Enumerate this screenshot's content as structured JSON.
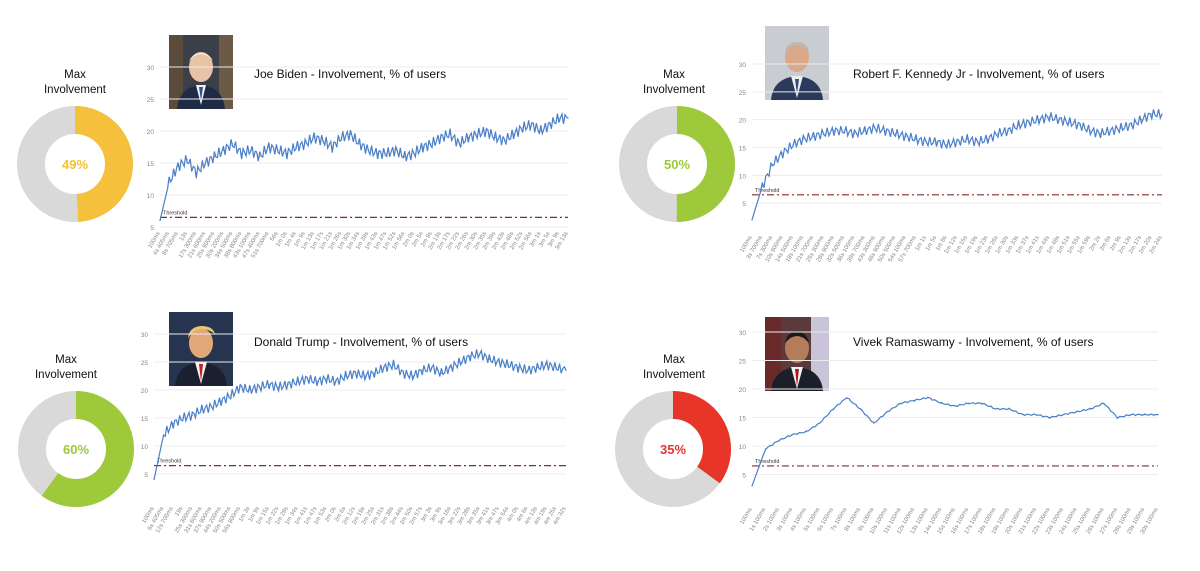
{
  "panels": [
    {
      "max_label_line1": "Max",
      "max_label_line2": "Involvement",
      "max_involvement": {
        "value": 49,
        "text": "49%",
        "color": "#f5c03b"
      },
      "portrait": "joe-biden-portrait",
      "chart_title": "Joe Biden - Involvement, % of users",
      "threshold_label": "Threshold"
    },
    {
      "max_label_line1": "Max",
      "max_label_line2": "Involvement",
      "max_involvement": {
        "value": 50,
        "text": "50%",
        "color": "#9dc93b"
      },
      "portrait": "robert-f-kennedy-jr-portrait",
      "chart_title": "Robert F. Kennedy Jr  - Involvement, % of users",
      "threshold_label": "Threshold"
    },
    {
      "max_label_line1": "Max",
      "max_label_line2": "Involvement",
      "max_involvement": {
        "value": 60,
        "text": "60%",
        "color": "#9dc93b"
      },
      "portrait": "donald-trump-portrait",
      "chart_title": "Donald Trump - Involvement, % of users",
      "threshold_label": "Threshold"
    },
    {
      "max_label_line1": "Max",
      "max_label_line2": "Involvement",
      "max_involvement": {
        "value": 35,
        "text": "35%",
        "color": "#e8352a"
      },
      "portrait": "vivek-ramaswamy-portrait",
      "chart_title": "Vivek Ramaswamy - Involvement, % of users",
      "threshold_label": "Threshold"
    }
  ],
  "colors": {
    "line": "#4a7fc8",
    "threshold": "#8b2a2a",
    "donut_track": "#d9d9d9",
    "grid": "#ececec",
    "axis_text": "#888888"
  },
  "chart_data": [
    {
      "type": "line",
      "title": "Joe Biden - Involvement, % of users",
      "ylim": [
        5,
        30
      ],
      "yticks": [
        5,
        10,
        15,
        20,
        25,
        30
      ],
      "threshold": 6.5,
      "x": [
        "100ms",
        "4s 405ms",
        "8s 705ms",
        "13s",
        "17s 300ms",
        "21s 600ms",
        "25s 900ms",
        "30s 200ms",
        "34s 500ms",
        "38s 800ms",
        "43s 100ms",
        "47s 400ms",
        "51s 700ms",
        "56s",
        "1m 0s",
        "1m 4s",
        "1m 9s",
        "1m 13s",
        "1m 17s",
        "1m 21s",
        "1m 26s",
        "1m 30s",
        "1m 34s",
        "1m 39s",
        "1m 43s",
        "1m 47s",
        "1m 52s",
        "1m 56s",
        "2m 0s",
        "2m 5s",
        "2m 9s",
        "2m 13s",
        "2m 17s",
        "2m 22s",
        "2m 26s",
        "2m 30s",
        "2m 35s",
        "2m 39s",
        "2m 43s",
        "2m 48s",
        "2m 52s",
        "2m 56s",
        "3m 1s",
        "3m 5s",
        "3m 9s",
        "3m 13s"
      ],
      "series": [
        {
          "values": [
            6,
            12,
            14.5,
            15.5,
            13.5,
            15,
            16,
            17,
            18,
            16.5,
            17,
            16,
            17.5,
            17,
            16.5,
            17.5,
            18,
            19,
            18.5,
            17.5,
            19,
            19.5,
            18,
            17,
            16.5,
            16.5,
            17,
            16,
            16.5,
            17.5,
            18,
            19,
            19.5,
            18,
            19,
            19.5,
            20,
            19,
            18.5,
            19.5,
            20.5,
            21,
            20,
            21,
            22,
            22
          ]
        }
      ]
    },
    {
      "type": "line",
      "title": "Robert F. Kennedy Jr  - Involvement, % of users",
      "ylim": [
        0,
        30
      ],
      "yticks": [
        5,
        10,
        15,
        20,
        25,
        30
      ],
      "threshold": 6.5,
      "x": [
        "100ms",
        "3s 700ms",
        "7s 300ms",
        "10s 900ms",
        "14s 500ms",
        "18s 100ms",
        "21s 700ms",
        "25s 300ms",
        "28s 900ms",
        "32s 500ms",
        "36s 100ms",
        "39s 700ms",
        "43s 300ms",
        "46s 900ms",
        "50s 500ms",
        "54s 100ms",
        "57s 700ms",
        "1m 1s",
        "1m 5s",
        "1m 8s",
        "1m 12s",
        "1m 15s",
        "1m 19s",
        "1m 23s",
        "1m 26s",
        "1m 30s",
        "1m 33s",
        "1m 37s",
        "1m 41s",
        "1m 44s",
        "1m 48s",
        "1m 51s",
        "1m 55s",
        "1m 59s",
        "2m 2s",
        "2m 6s",
        "2m 9s",
        "2m 13s",
        "2m 17s",
        "2m 20s",
        "2m 24s"
      ],
      "series": [
        {
          "values": [
            2,
            8,
            12,
            14,
            15.5,
            16.5,
            17,
            17.5,
            18,
            18,
            17.5,
            18,
            18.5,
            18,
            17.5,
            17,
            16.5,
            16,
            16,
            15.5,
            16,
            16.5,
            16,
            16.5,
            17.5,
            18,
            19,
            19.5,
            20,
            20.5,
            20,
            19.5,
            19,
            18,
            17.5,
            18,
            18.5,
            19,
            20,
            21,
            21
          ]
        }
      ]
    },
    {
      "type": "line",
      "title": "Donald Trump - Involvement, % of users",
      "ylim": [
        0,
        30
      ],
      "yticks": [
        5,
        10,
        15,
        20,
        25,
        30
      ],
      "threshold": 6.5,
      "x": [
        "100ms",
        "6s 405ms",
        "12s 700ms",
        "19s",
        "25s 300ms",
        "31s 600ms",
        "37s 900ms",
        "44s 200ms",
        "50s 500ms",
        "56s 800ms",
        "1m 3s",
        "1m 9s",
        "1m 15s",
        "1m 22s",
        "1m 28s",
        "1m 34s",
        "1m 41s",
        "1m 47s",
        "1m 53s",
        "2m 0s",
        "2m 6s",
        "2m 12s",
        "2m 19s",
        "2m 25s",
        "2m 31s",
        "2m 38s",
        "2m 44s",
        "2m 50s",
        "2m 57s",
        "3m 3s",
        "3m 9s",
        "3m 16s",
        "3m 22s",
        "3m 28s",
        "3m 35s",
        "3m 41s",
        "3m 47s",
        "3m 54s",
        "4m 0s",
        "4m 6s",
        "4m 13s",
        "4m 19s",
        "4m 25s",
        "4m 32s"
      ],
      "series": [
        {
          "values": [
            4,
            12,
            14,
            15,
            15.5,
            16.5,
            17,
            18,
            19,
            20.5,
            20,
            20.5,
            21,
            20.5,
            21,
            21.5,
            22,
            21.5,
            22,
            21.5,
            22.5,
            23,
            22.5,
            23,
            24,
            24.5,
            23,
            22.5,
            23.5,
            24,
            23,
            24,
            25,
            26,
            26.5,
            25.5,
            25,
            24.5,
            24,
            23.5,
            24,
            24.5,
            24,
            23.5
          ]
        }
      ]
    },
    {
      "type": "line",
      "title": "Vivek Ramaswamy - Involvement, % of users",
      "ylim": [
        0,
        30
      ],
      "yticks": [
        5,
        10,
        15,
        20,
        25,
        30
      ],
      "threshold": 6.5,
      "x": [
        "100ms",
        "1s 100ms",
        "2s 100ms",
        "3s 100ms",
        "4s 100ms",
        "5s 100ms",
        "6s 100ms",
        "7s 100ms",
        "8s 100ms",
        "9s 100ms",
        "10s 100ms",
        "11s 100ms",
        "12s 100ms",
        "13s 100ms",
        "14s 100ms",
        "15s 100ms",
        "16s 100ms",
        "17s 100ms",
        "18s 100ms",
        "19s 100ms",
        "20s 100ms",
        "21s 100ms",
        "22s 100ms",
        "23s 100ms",
        "24s 100ms",
        "25s 100ms",
        "26s 100ms",
        "27s 100ms",
        "28s 100ms",
        "29s 100ms",
        "30s 100ms"
      ],
      "series": [
        {
          "values": [
            3,
            9.5,
            11,
            12,
            12.5,
            14,
            16.5,
            18.5,
            16.5,
            14,
            16,
            17.5,
            18,
            18.5,
            17.5,
            17,
            17.5,
            17.5,
            16.5,
            16.5,
            15.5,
            15.5,
            15,
            15.5,
            16,
            16.5,
            17.5,
            15,
            15.5,
            15.5,
            15.5
          ]
        }
      ]
    }
  ]
}
